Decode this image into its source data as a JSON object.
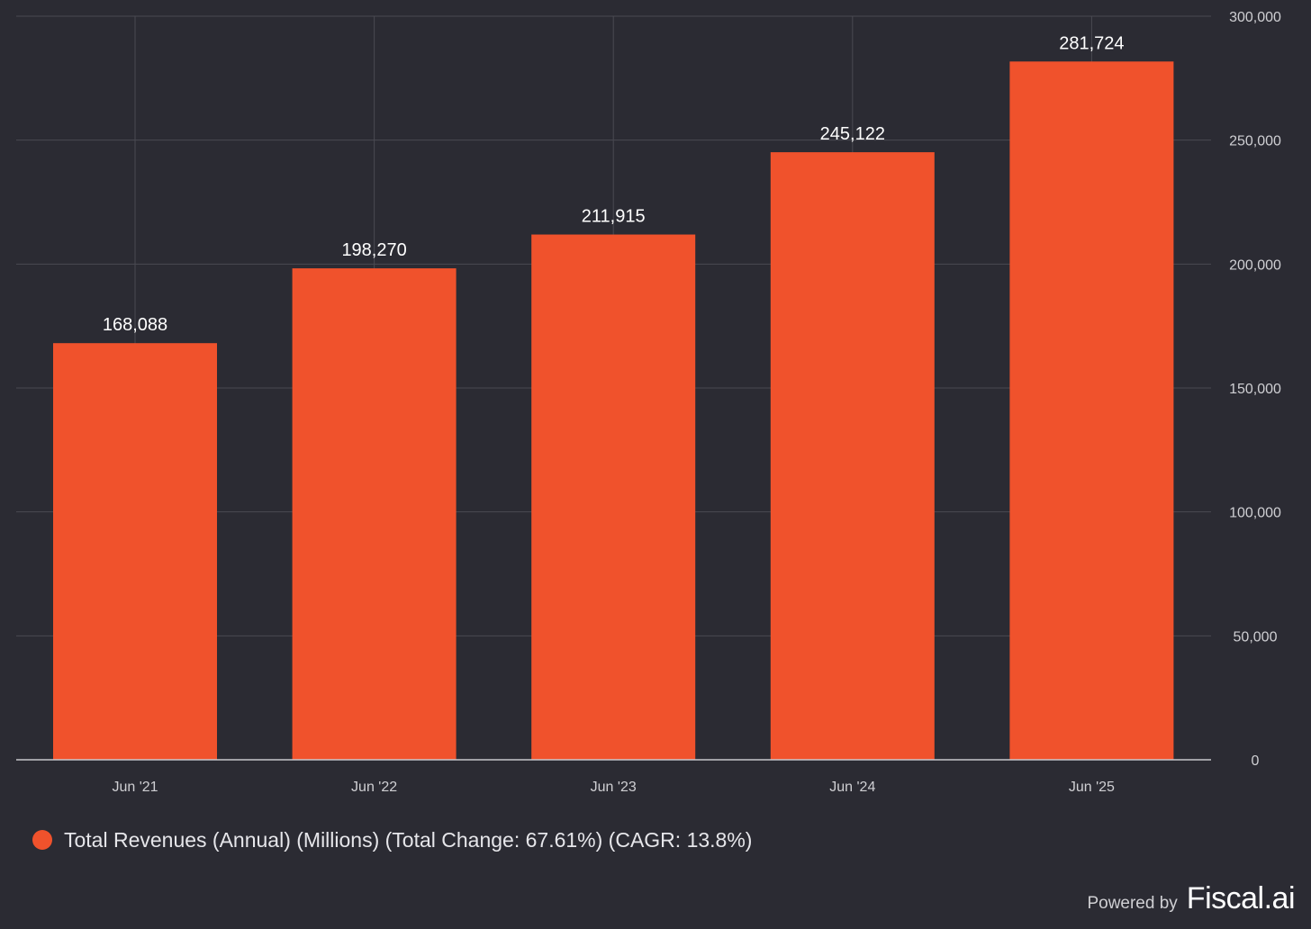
{
  "chart_data": {
    "type": "bar",
    "categories": [
      "Jun '21",
      "Jun '22",
      "Jun '23",
      "Jun '24",
      "Jun '25"
    ],
    "series": [
      {
        "name": "Total Revenues (Annual) (Millions) (Total Change: 67.61%) (CAGR: 13.8%)",
        "values": [
          168088,
          198270,
          211915,
          245122,
          281724
        ],
        "value_labels": [
          "168,088",
          "198,270",
          "211,915",
          "245,122",
          "281,724"
        ],
        "color": "#f0522c"
      }
    ],
    "y_ticks": [
      0,
      50000,
      100000,
      150000,
      200000,
      250000,
      300000
    ],
    "y_tick_labels": [
      "0",
      "50,000",
      "100,000",
      "150,000",
      "200,000",
      "250,000",
      "300,000"
    ],
    "ylim": [
      0,
      300000
    ],
    "y_axis_side": "right",
    "grid": true,
    "legend_position": "bottom-left",
    "background": "#2b2b33"
  },
  "branding": {
    "powered_by": "Powered by",
    "brand": "Fiscal.ai"
  }
}
